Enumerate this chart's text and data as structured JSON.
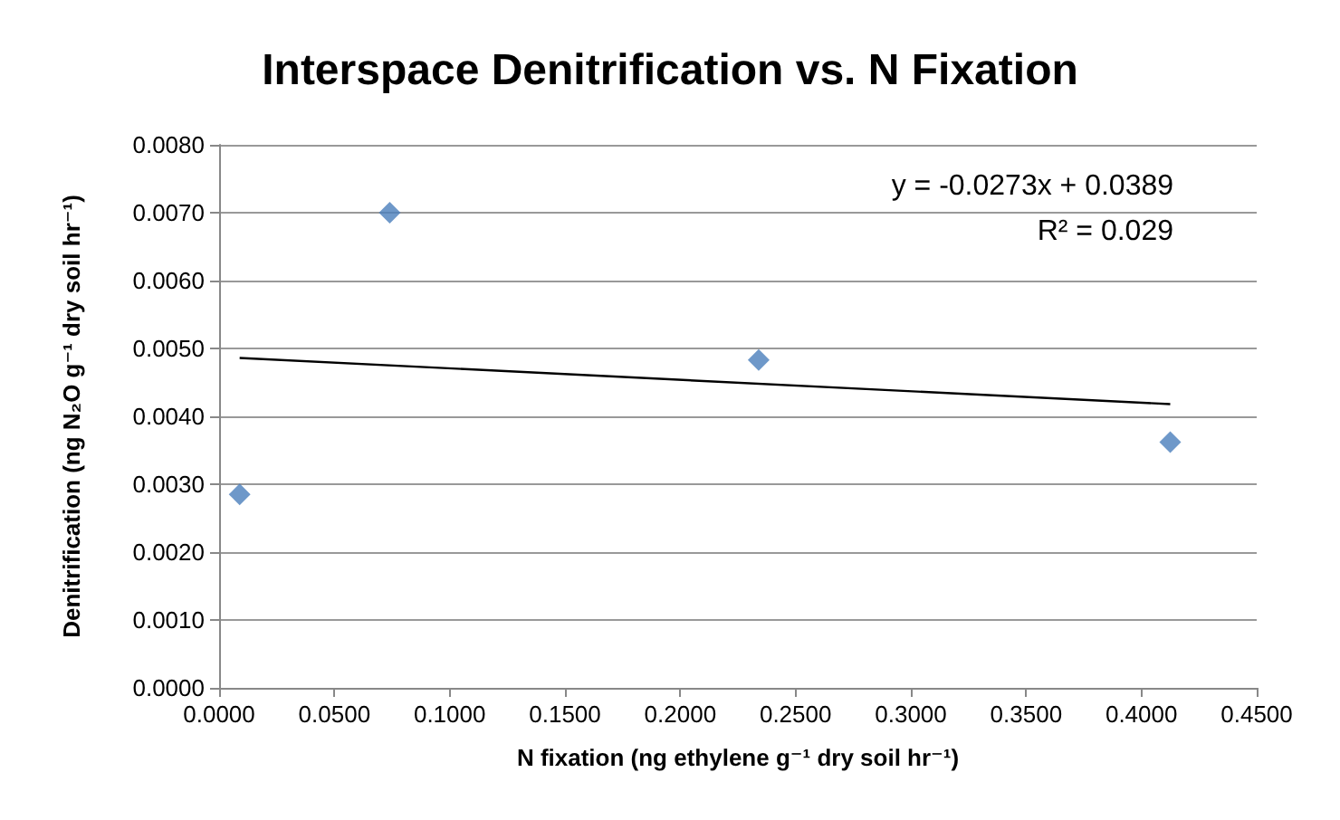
{
  "chart_data": {
    "type": "scatter",
    "title": "Interspace Denitrification vs. N Fixation",
    "xlabel": "N fixation (ng ethylene g⁻¹ dry soil hr⁻¹)",
    "ylabel": "Denitrification (ng N₂O g⁻¹ dry soil hr⁻¹)",
    "annotations": [
      "y = -0.0273x + 0.0389",
      "R² = 0.029"
    ],
    "series": [
      {
        "type": "scatter",
        "color": "#4a7ebb",
        "marker": "diamond",
        "x": [
          0.0089,
          0.074,
          0.234,
          0.4125
        ],
        "values": [
          0.00285,
          0.007,
          0.00483,
          0.00362
        ]
      },
      {
        "type": "line",
        "color": "#000000",
        "marker": "none",
        "line_style": "solid",
        "x": [
          0.0089,
          0.4125
        ],
        "values": [
          0.00486,
          0.00418
        ]
      }
    ],
    "xlim": [
      0,
      0.45
    ],
    "xticks": [
      {
        "value": 0,
        "label": "0.0000"
      },
      {
        "value": 0.05,
        "label": "0.0500"
      },
      {
        "value": 0.1,
        "label": "0.1000"
      },
      {
        "value": 0.15,
        "label": "0.1500"
      },
      {
        "value": 0.2,
        "label": "0.2000"
      },
      {
        "value": 0.25,
        "label": "0.2500"
      },
      {
        "value": 0.3,
        "label": "0.3000"
      },
      {
        "value": 0.35,
        "label": "0.3500"
      },
      {
        "value": 0.4,
        "label": "0.4000"
      },
      {
        "value": 0.45,
        "label": "0.4500"
      }
    ],
    "ylim": [
      0,
      0.008
    ],
    "yticks": [
      {
        "value": 0,
        "label": "0.0000"
      },
      {
        "value": 0.001,
        "label": "0.0010"
      },
      {
        "value": 0.002,
        "label": "0.0020"
      },
      {
        "value": 0.003,
        "label": "0.0030"
      },
      {
        "value": 0.004,
        "label": "0.0040"
      },
      {
        "value": 0.005,
        "label": "0.0050"
      },
      {
        "value": 0.006,
        "label": "0.0060"
      },
      {
        "value": 0.007,
        "label": "0.0070"
      },
      {
        "value": 0.008,
        "label": "0.0080"
      }
    ],
    "grid": "y"
  }
}
